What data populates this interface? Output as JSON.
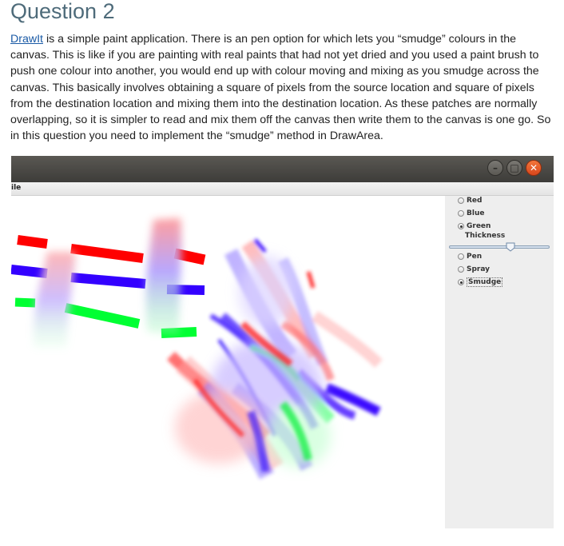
{
  "heading": "Question 2",
  "paragraph": {
    "link_text": "DrawIt",
    "body": " is a simple paint application. There is an pen option for which lets you “smudge” colours in the canvas. This is like if you are painting with real paints that had not yet dried and you used a paint brush to push one colour into another, you would end up with colour moving and mixing as you smudge across the canvas. This basically involves obtaining a square of pixels from the source location and square of pixels from the destination location and mixing them into the destination location. As these patches are normally overlapping, so it is simpler to read and mix them off the canvas then write them to the canvas is one go. So in this question you need to implement the “smudge” method in DrawArea."
  },
  "window": {
    "menu_label": "ile",
    "buttons": {
      "minimize_icon": "minimize-icon",
      "maximize_icon": "maximize-icon",
      "close_icon": "close-icon"
    },
    "colors": {
      "options": [
        "Red",
        "Blue",
        "Green"
      ],
      "selected": "Green"
    },
    "thickness_label": "Thickness",
    "thickness_level": 0.62,
    "tools": {
      "options": [
        "Pen",
        "Spray",
        "Smudge"
      ],
      "selected": "Smudge"
    },
    "accent_colors": {
      "red": "#ff0000",
      "blue": "#3300ff",
      "green": "#00ff33"
    }
  }
}
